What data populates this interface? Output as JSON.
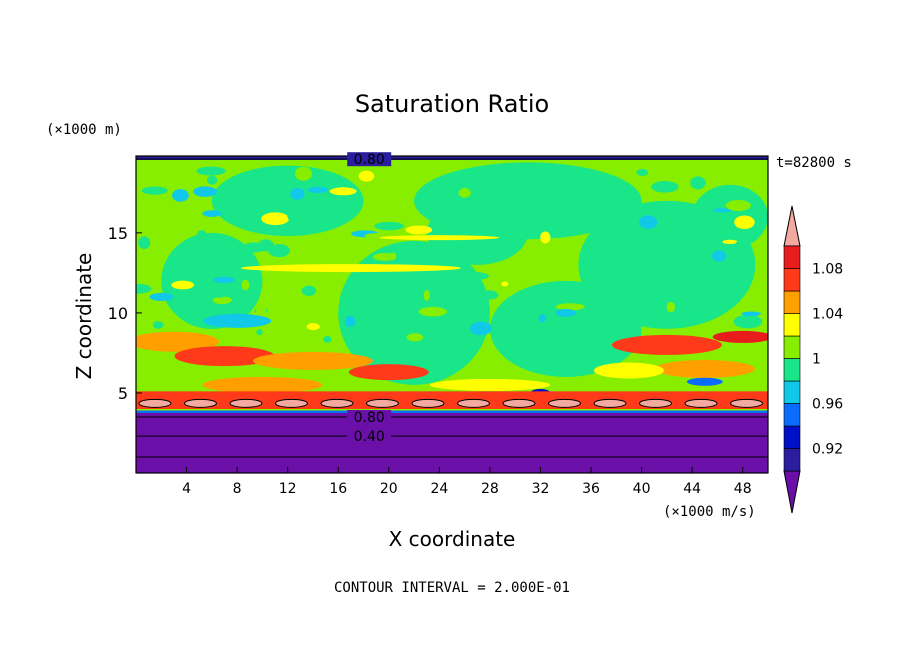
{
  "chart_data": {
    "type": "heatmap",
    "title": "Saturation Ratio",
    "xlabel": "X coordinate",
    "ylabel": "Z coordinate",
    "x_unit": "(×1000 m/s)",
    "y_unit": "(×1000 m)",
    "time_label": "t=82800 s",
    "footer": "CONTOUR INTERVAL = 2.000E-01",
    "xlim": [
      0,
      50
    ],
    "ylim": [
      0,
      19.8
    ],
    "x_ticks": [
      4,
      8,
      12,
      16,
      20,
      24,
      28,
      32,
      36,
      40,
      44,
      48
    ],
    "y_ticks": [
      5,
      10,
      15
    ],
    "contour_labels": [
      {
        "text": "0.80",
        "x": 17.5,
        "y": 19.6
      },
      {
        "text": "0.80",
        "x": 17.5,
        "y": 3.5
      },
      {
        "text": "0.40",
        "x": 17.5,
        "y": 2.3
      }
    ],
    "colorbar": {
      "levels": [
        0.9,
        0.92,
        0.94,
        0.96,
        0.98,
        1.0,
        1.02,
        1.04,
        1.06,
        1.08,
        1.1
      ],
      "tick_labels": [
        "0.92",
        "0.96",
        "1",
        "1.04",
        "1.08"
      ],
      "tick_values": [
        0.92,
        0.96,
        1.0,
        1.04,
        1.08
      ],
      "colors": [
        "#6a0fa8",
        "#2b1e9e",
        "#0010c8",
        "#0a6cff",
        "#10c8e8",
        "#18e688",
        "#88ee00",
        "#ffff00",
        "#ff9f00",
        "#ff3a1a",
        "#e81c1c",
        "#f4a9a0"
      ],
      "under_color": "#6a0fa8",
      "over_color": "#f4a9a0"
    }
  }
}
